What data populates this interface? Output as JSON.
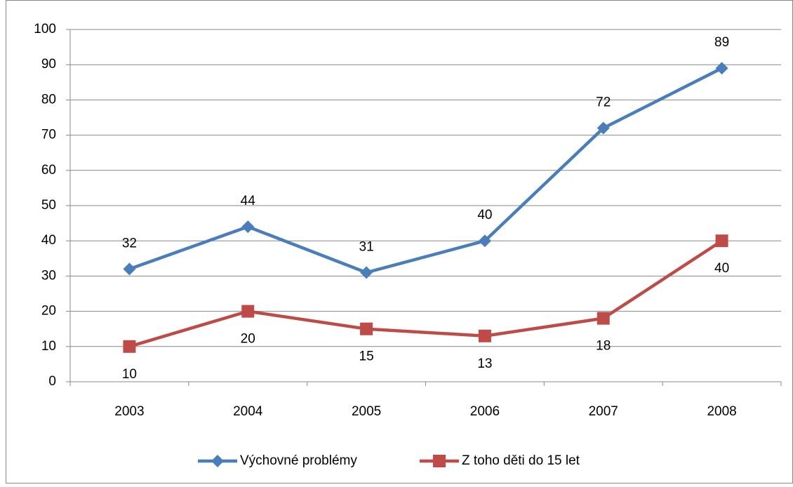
{
  "chart_data": {
    "type": "line",
    "categories": [
      "2003",
      "2004",
      "2005",
      "2006",
      "2007",
      "2008"
    ],
    "series": [
      {
        "name": "Výchovné problémy",
        "color": "#4a7ebb",
        "values": [
          32,
          44,
          31,
          40,
          72,
          89
        ]
      },
      {
        "name": "Z toho děti do 15 let",
        "color": "#be4b48",
        "values": [
          10,
          20,
          15,
          13,
          18,
          40
        ]
      }
    ],
    "ylim": [
      0,
      100
    ],
    "yticks": [
      0,
      10,
      20,
      30,
      40,
      50,
      60,
      70,
      80,
      90,
      100
    ],
    "grid": true,
    "legend": "bottom"
  }
}
